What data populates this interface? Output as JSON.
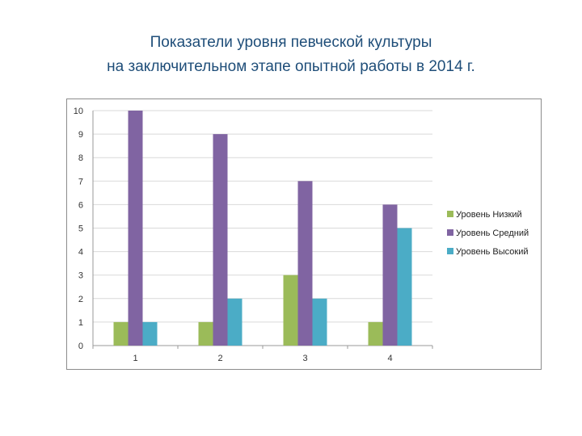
{
  "page": {
    "title_line1": "Показатели уровня певческой культуры",
    "title_line2": "на заключительном  этапе  опытной работы в 2014 г."
  },
  "chart_data": {
    "type": "bar",
    "categories": [
      "1",
      "2",
      "3",
      "4"
    ],
    "series": [
      {
        "name": "Уровень Низкий",
        "values": [
          1,
          1,
          3,
          1
        ],
        "color": "#9bbb59"
      },
      {
        "name": "Уровень Средний",
        "values": [
          10,
          9,
          7,
          6
        ],
        "color": "#8064a2"
      },
      {
        "name": "Уровень Высокий",
        "values": [
          1,
          2,
          2,
          5
        ],
        "color": "#4bacc6"
      }
    ],
    "ylim": [
      0,
      10
    ],
    "yticks": [
      0,
      1,
      2,
      3,
      4,
      5,
      6,
      7,
      8,
      9,
      10
    ],
    "grid": true,
    "legend": "right"
  }
}
